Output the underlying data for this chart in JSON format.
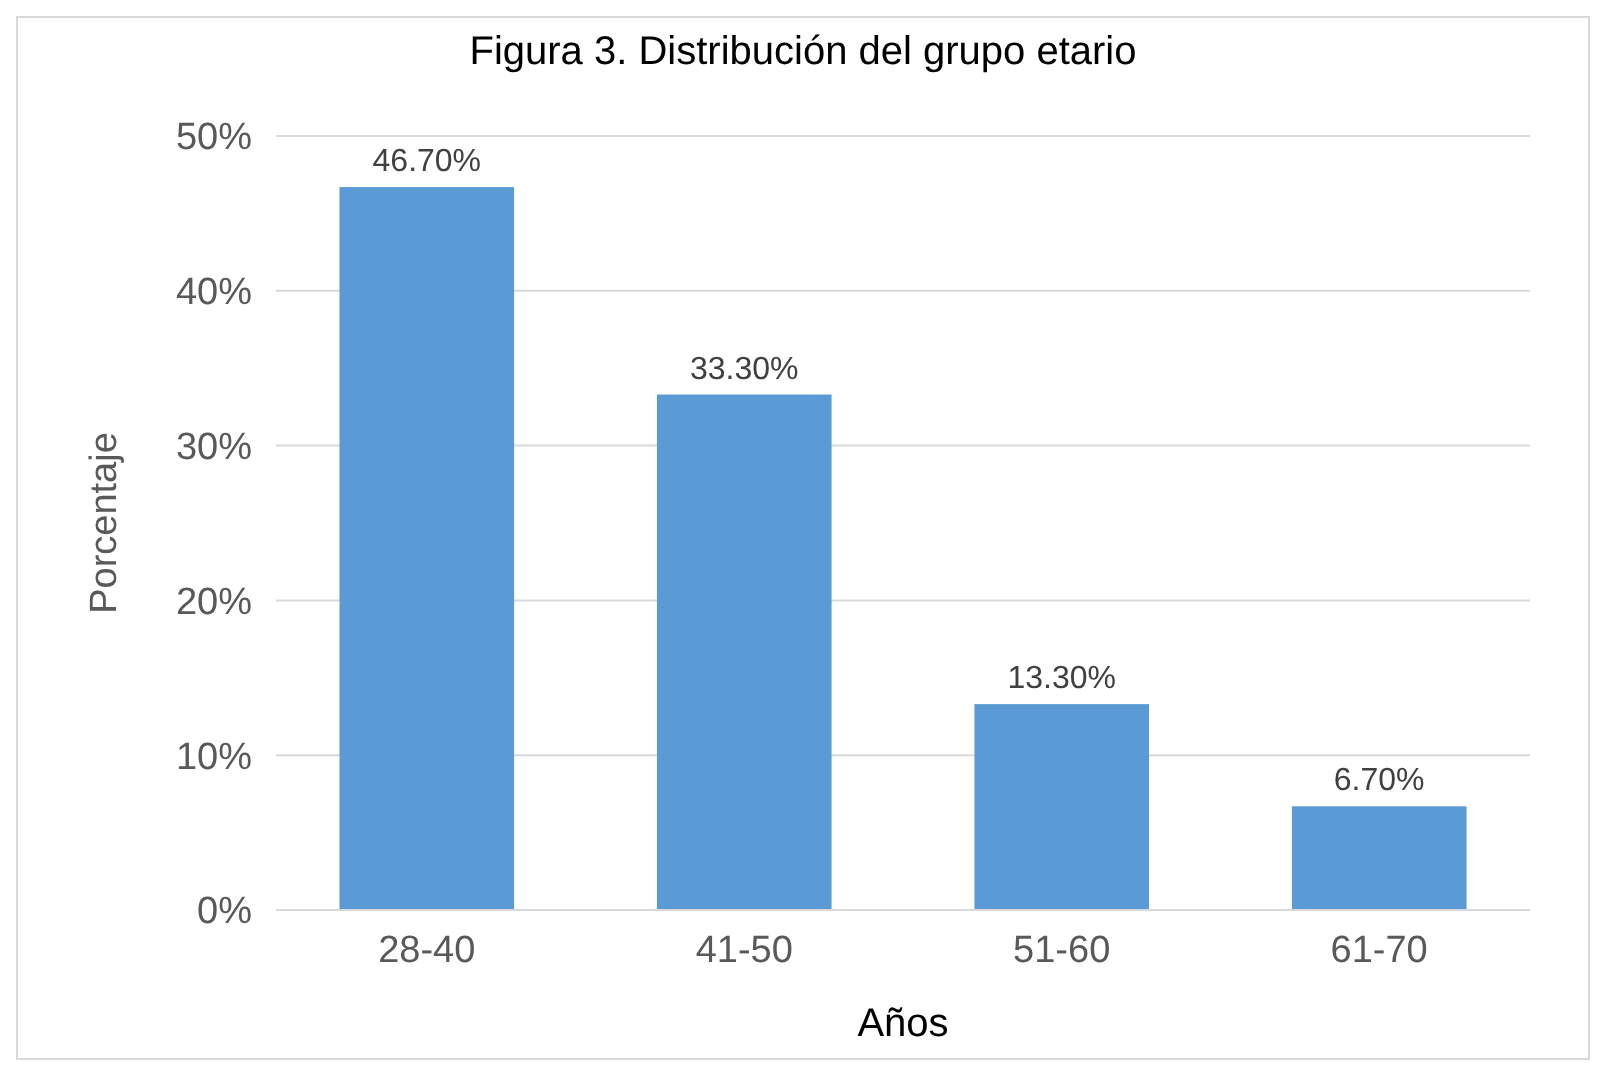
{
  "chart_data": {
    "type": "bar",
    "title": "Figura 3. Distribución del grupo etario",
    "xlabel": "Años",
    "ylabel": "Porcentaje",
    "categories": [
      "28-40",
      "41-50",
      "51-60",
      "61-70"
    ],
    "values": [
      46.7,
      33.3,
      13.3,
      6.7
    ],
    "value_labels": [
      "46.70%",
      "33.30%",
      "13.30%",
      "6.70%"
    ],
    "color": "#5b9bd5",
    "ylim": [
      0,
      50
    ],
    "yticks": [
      {
        "value": 0,
        "label": "0%"
      },
      {
        "value": 10,
        "label": "10%"
      },
      {
        "value": 20,
        "label": "20%"
      },
      {
        "value": 30,
        "label": "30%"
      },
      {
        "value": 40,
        "label": "40%"
      },
      {
        "value": 50,
        "label": "50%"
      }
    ],
    "grid": "y"
  }
}
